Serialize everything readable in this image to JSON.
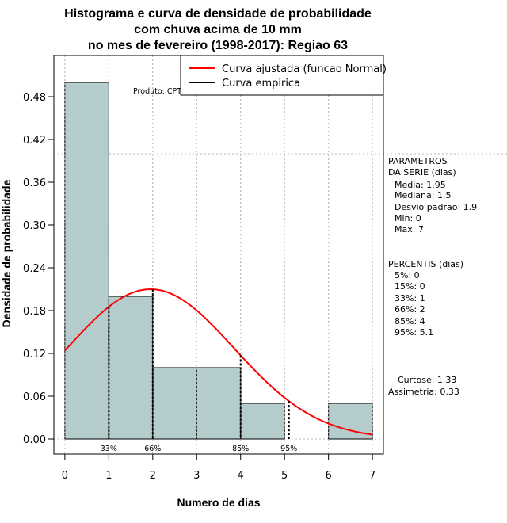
{
  "chart_data": {
    "type": "bar",
    "title_lines": [
      "Histograma e curva de densidade de probabilidade",
      "com chuva acima de 10 mm",
      "no mes de fevereiro (1998-2017): Regiao 63"
    ],
    "xlabel": "Numero de dias",
    "ylabel": "Densidade de probabilidade",
    "xlim": [
      -0.25,
      7.25
    ],
    "ylim": [
      0,
      0.5
    ],
    "x_ticks": [
      0,
      1,
      2,
      3,
      4,
      5,
      6,
      7
    ],
    "y_ticks": [
      0.0,
      0.06,
      0.12,
      0.18,
      0.24,
      0.3,
      0.36,
      0.42,
      0.48
    ],
    "y_tick_labels": [
      "0.00",
      "0.06",
      "0.12",
      "0.18",
      "0.24",
      "0.30",
      "0.36",
      "0.42",
      "0.48"
    ],
    "bins": [
      {
        "from": 0,
        "to": 1,
        "density": 0.5
      },
      {
        "from": 1,
        "to": 2,
        "density": 0.2
      },
      {
        "from": 2,
        "to": 3,
        "density": 0.1
      },
      {
        "from": 3,
        "to": 4,
        "density": 0.1
      },
      {
        "from": 4,
        "to": 5,
        "density": 0.05
      },
      {
        "from": 5,
        "to": 6,
        "density": 0.0
      },
      {
        "from": 6,
        "to": 7,
        "density": 0.05
      }
    ],
    "extra_hline_y": 0.4,
    "normal_fit": {
      "mean": 1.95,
      "sd": 1.9
    },
    "percentile_markers": [
      {
        "label": "33%",
        "x": 1
      },
      {
        "label": "66%",
        "x": 2
      },
      {
        "label": "85%",
        "x": 4
      },
      {
        "label": "95%",
        "x": 5.1
      }
    ],
    "legend": [
      {
        "label": "Curva ajustada (funcao Normal)",
        "color": "#ff0000"
      },
      {
        "label": "Curva empirica",
        "color": "#000000"
      }
    ],
    "product_note": "Produto: CPTEC/INPE",
    "colors": {
      "bar_fill": "#b5cccc",
      "curve": "#ff0000",
      "grid": "#bbbbbb"
    }
  },
  "side_panel": {
    "params_title": [
      "PARAMETROS",
      "DA SERIE (dias)"
    ],
    "params": [
      "Media: 1.95",
      "Mediana: 1.5",
      "Desvio padrao: 1.9",
      "Min: 0",
      "Max: 7"
    ],
    "percentis_title": "PERCENTIS (dias)",
    "percentis": [
      "5%: 0",
      "15%: 0",
      "33%: 1",
      "66%: 2",
      "85%: 4",
      "95%: 5.1"
    ],
    "curtose": "Curtose: 1.33",
    "assimetria": "Assimetria: 0.33"
  }
}
